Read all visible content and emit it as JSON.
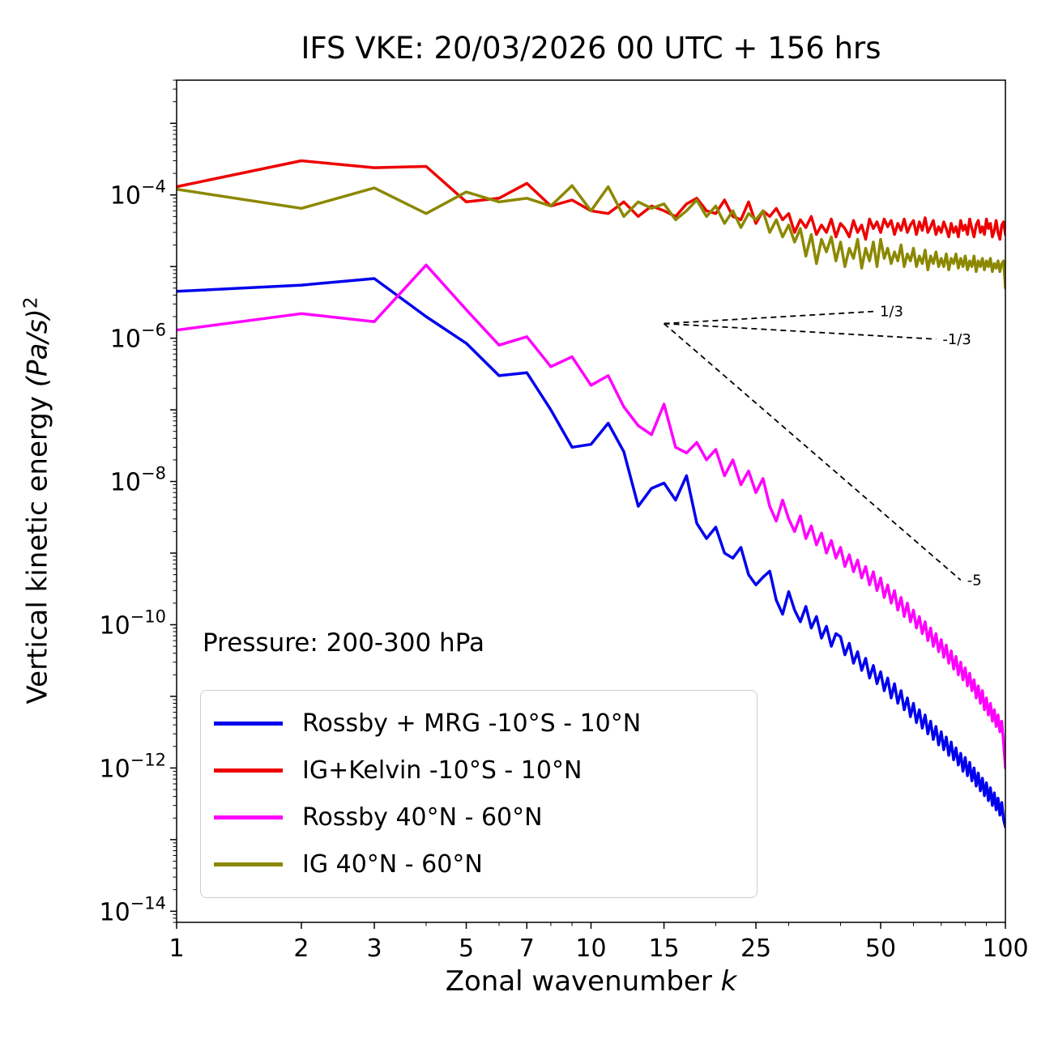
{
  "title": "IFS VKE: 20/03/2026 00 UTC + 156 hrs",
  "axes": {
    "x_label_prefix": "Zonal wavenumber ",
    "x_label_var": "k",
    "y_label_prefix": "Vertical kinetic energy ",
    "y_label_units": "(Pa/s)",
    "y_label_exp": "2",
    "x_ticks": [
      1,
      2,
      3,
      5,
      7,
      10,
      15,
      25,
      50,
      100
    ],
    "x_minor_ticks": [
      4,
      6,
      8,
      9,
      20,
      30,
      40,
      60,
      70,
      80,
      90
    ],
    "y_tick_exponents": [
      -4,
      -6,
      -8,
      -10,
      -12,
      -14
    ]
  },
  "annotation": {
    "pressure_text": "Pressure: 200-300 hPa"
  },
  "legend": {
    "position": "lower left",
    "entries": [
      {
        "label": "Rossby + MRG -10°S - 10°N",
        "color": "#0000ee"
      },
      {
        "label": "IG+Kelvin -10°S - 10°N",
        "color": "#ee0000"
      },
      {
        "label": "Rossby 40°N - 60°N",
        "color": "#ff00ff"
      },
      {
        "label": "IG 40°N - 60°N",
        "color": "#8b8800"
      }
    ]
  },
  "chart_data": {
    "type": "line",
    "title": "IFS VKE: 20/03/2026 00 UTC + 156 hrs",
    "xlabel": "Zonal wavenumber k",
    "ylabel": "Vertical kinetic energy (Pa/s)^2",
    "x_scale": "log",
    "y_scale": "log",
    "grid": false,
    "xlim": [
      1,
      100
    ],
    "ylim": [
      7e-15,
      0.004
    ],
    "x": [
      1,
      2,
      3,
      4,
      5,
      6,
      7,
      8,
      9,
      10,
      11,
      12,
      13,
      14,
      15,
      16,
      17,
      18,
      19,
      20,
      21,
      22,
      23,
      24,
      25,
      26,
      27,
      28,
      29,
      30,
      31,
      32,
      33,
      34,
      35,
      36,
      37,
      38,
      39,
      40,
      41,
      42,
      43,
      44,
      45,
      46,
      47,
      48,
      49,
      50,
      51,
      52,
      53,
      54,
      55,
      56,
      57,
      58,
      59,
      60,
      61,
      62,
      63,
      64,
      65,
      66,
      67,
      68,
      69,
      70,
      71,
      72,
      73,
      74,
      75,
      76,
      77,
      78,
      79,
      80,
      81,
      82,
      83,
      84,
      85,
      86,
      87,
      88,
      89,
      90,
      91,
      92,
      93,
      94,
      95,
      96,
      97,
      98,
      99,
      100
    ],
    "series": [
      {
        "id": "rossby-mrg-tropics-line",
        "name": "Rossby + MRG -10°S - 10°N",
        "color": "#0000ee",
        "values": [
          4.5e-06,
          5.5e-06,
          6.8e-06,
          2e-06,
          8.5e-07,
          3e-07,
          3.3e-07,
          1e-07,
          3e-08,
          3.3e-08,
          6.5e-08,
          2.6e-08,
          4.5e-09,
          8e-09,
          9.5e-09,
          5.5e-09,
          1.2e-08,
          2.6e-09,
          1.6e-09,
          2.3e-09,
          1e-09,
          8.5e-10,
          1.2e-09,
          5e-10,
          3.6e-10,
          4.6e-10,
          5.6e-10,
          2.2e-10,
          1.4e-10,
          2.9e-10,
          1.6e-10,
          1.1e-10,
          1.8e-10,
          9e-11,
          1.3e-10,
          6.5e-11,
          9.5e-11,
          5e-11,
          7.5e-11,
          6.8e-11,
          3.8e-11,
          5.5e-11,
          2.9e-11,
          4.2e-11,
          2.3e-11,
          3.4e-11,
          1.8e-11,
          2.7e-11,
          1.5e-11,
          2.2e-11,
          1.2e-11,
          1.8e-11,
          9.5e-12,
          1.5e-11,
          8e-12,
          1.2e-11,
          6.5e-12,
          9.5e-12,
          5.2e-12,
          8e-12,
          4.3e-12,
          6.5e-12,
          3.6e-12,
          5.5e-12,
          3e-12,
          4.5e-12,
          2.5e-12,
          3.8e-12,
          2.1e-12,
          3.2e-12,
          1.8e-12,
          2.7e-12,
          1.5e-12,
          2.3e-12,
          1.3e-12,
          1.9e-12,
          1.1e-12,
          1.6e-12,
          9e-13,
          1.4e-12,
          7.8e-13,
          1.2e-12,
          6.6e-13,
          1e-12,
          5.6e-13,
          8.5e-13,
          4.8e-13,
          7.2e-13,
          4.1e-13,
          6.2e-13,
          3.5e-13,
          5.3e-13,
          3e-13,
          4.5e-13,
          2.6e-13,
          3.8e-13,
          2.2e-13,
          3.3e-13,
          1.9e-13,
          1.5e-13
        ]
      },
      {
        "id": "ig-kelvin-tropics-line",
        "name": "IG+Kelvin -10°S - 10°N",
        "color": "#ee0000",
        "values": [
          0.00013,
          0.0003,
          0.00024,
          0.00025,
          8e-05,
          9e-05,
          0.000145,
          7e-05,
          8.5e-05,
          6e-05,
          5.5e-05,
          8e-05,
          5e-05,
          7e-05,
          6e-05,
          5e-05,
          7.5e-05,
          9e-05,
          6e-05,
          5.5e-05,
          8.5e-05,
          5e-05,
          4.5e-05,
          8e-05,
          4e-05,
          6e-05,
          5e-05,
          6.5e-05,
          4.5e-05,
          5.5e-05,
          3e-05,
          4.5e-05,
          3.5e-05,
          5e-05,
          2.8e-05,
          3.8e-05,
          3e-05,
          4.6e-05,
          2.6e-05,
          4e-05,
          3.4e-05,
          2.6e-05,
          4.4e-05,
          3e-05,
          3.8e-05,
          2.4e-05,
          4.6e-05,
          3.4e-05,
          4.2e-05,
          3e-05,
          4.6e-05,
          3.6e-05,
          4.4e-05,
          2.8e-05,
          4e-05,
          3.2e-05,
          4.6e-05,
          3e-05,
          3.8e-05,
          4.4e-05,
          2.8e-05,
          4.2e-05,
          3.2e-05,
          4.8e-05,
          3e-05,
          3.6e-05,
          4.4e-05,
          2.8e-05,
          3.6e-05,
          3e-05,
          4.2e-05,
          3.4e-05,
          2.6e-05,
          4e-05,
          3e-05,
          3.6e-05,
          2.6e-05,
          4.4e-05,
          3.2e-05,
          3.8e-05,
          2.8e-05,
          4.6e-05,
          3.4e-05,
          2.6e-05,
          3.8e-05,
          4.4e-05,
          3e-05,
          3.6e-05,
          2.8e-05,
          4.6e-05,
          3.4e-05,
          4e-05,
          2.6e-05,
          3.2e-05,
          4.4e-05,
          3e-05,
          2.4e-05,
          3.8e-05,
          4.2e-05,
          2.8e-05
        ]
      },
      {
        "id": "rossby-midlat-line",
        "name": "Rossby 40°N - 60°N",
        "color": "#ff00ff",
        "values": [
          1.3e-06,
          2.2e-06,
          1.7e-06,
          1.05e-05,
          2.5e-06,
          8e-07,
          1.05e-06,
          4e-07,
          5.5e-07,
          2.2e-07,
          3e-07,
          1.1e-07,
          6e-08,
          4.5e-08,
          1.2e-07,
          3e-08,
          2.5e-08,
          3.5e-08,
          2e-08,
          2.8e-08,
          1.2e-08,
          2e-08,
          9e-09,
          1.4e-08,
          7e-09,
          1.1e-08,
          4.5e-09,
          2.8e-09,
          5.5e-09,
          3e-09,
          2e-09,
          3.3e-09,
          1.6e-09,
          2.4e-09,
          1.3e-09,
          1.9e-09,
          1e-09,
          1.5e-09,
          8.5e-10,
          1.2e-09,
          6.5e-10,
          9.5e-10,
          5.5e-10,
          8e-10,
          4.5e-10,
          6.5e-10,
          3.6e-10,
          5.5e-10,
          3e-10,
          4.5e-10,
          2.4e-10,
          3.6e-10,
          2e-10,
          3e-10,
          1.6e-10,
          2.4e-10,
          1.3e-10,
          2e-10,
          1.1e-10,
          1.6e-10,
          9e-11,
          1.3e-10,
          7.5e-11,
          1.1e-10,
          6e-11,
          9e-11,
          5e-11,
          7.5e-11,
          4.2e-11,
          6.2e-11,
          3.5e-11,
          5.2e-11,
          2.9e-11,
          4.3e-11,
          2.4e-11,
          3.6e-11,
          2e-11,
          3e-11,
          1.7e-11,
          2.5e-11,
          1.4e-11,
          2.1e-11,
          1.2e-11,
          1.7e-11,
          9.5e-12,
          1.4e-11,
          8e-12,
          1.2e-11,
          6.5e-12,
          9.5e-12,
          5.5e-12,
          8e-12,
          4.5e-12,
          6.5e-12,
          3.8e-12,
          5.5e-12,
          3.2e-12,
          4.5e-12,
          2.2e-12,
          1e-12
        ]
      },
      {
        "id": "ig-midlat-line",
        "name": "IG 40°N - 60°N",
        "color": "#8b8800",
        "values": [
          0.00012,
          6.5e-05,
          0.000125,
          5.5e-05,
          0.00011,
          8e-05,
          9e-05,
          7e-05,
          0.000135,
          6e-05,
          0.00013,
          5e-05,
          8e-05,
          6.5e-05,
          7.5e-05,
          4.5e-05,
          6e-05,
          8.5e-05,
          5e-05,
          7e-05,
          4e-05,
          6e-05,
          3.5e-05,
          5.5e-05,
          4.5e-05,
          6e-05,
          3e-05,
          4.5e-05,
          2.6e-05,
          3.8e-05,
          2.2e-05,
          3.4e-05,
          1.4e-05,
          2.8e-05,
          1.1e-05,
          2.4e-05,
          1.6e-05,
          2.6e-05,
          1.2e-05,
          2.2e-05,
          1e-05,
          1.8e-05,
          1.3e-05,
          2.4e-05,
          9.5e-06,
          1.8e-05,
          1.2e-05,
          2.2e-05,
          1e-05,
          2.4e-05,
          1.3e-05,
          1.8e-05,
          1.1e-05,
          1.6e-05,
          1.2e-05,
          2e-05,
          1e-05,
          1.5e-05,
          1.2e-05,
          1.8e-05,
          1e-05,
          1.4e-05,
          1.1e-05,
          1.7e-05,
          9e-06,
          1.4e-05,
          1.1e-05,
          1.6e-05,
          1e-05,
          1.3e-05,
          1e-05,
          1.5e-05,
          9e-06,
          1.3e-05,
          1.1e-05,
          1.5e-05,
          9.5e-06,
          1.3e-05,
          1e-05,
          1.4e-05,
          9e-06,
          1.2e-05,
          1e-05,
          1.4e-05,
          8.5e-06,
          1.2e-05,
          1e-05,
          1.3e-05,
          9e-06,
          1.2e-05,
          1e-05,
          1.3e-05,
          8.5e-06,
          1.1e-05,
          9.5e-06,
          1.2e-05,
          8.5e-06,
          1.1e-05,
          1.2e-05,
          5e-06
        ]
      }
    ],
    "reference_lines": [
      {
        "id": "slope-one-third",
        "label": "1/3",
        "slope": 0.333,
        "x": [
          15,
          48
        ],
        "y": [
          1.6e-06,
          2.36e-06
        ]
      },
      {
        "id": "slope-minus-one-third",
        "label": "-1/3",
        "slope": -0.333,
        "x": [
          15,
          68
        ],
        "y": [
          1.6e-06,
          9.7e-07
        ]
      },
      {
        "id": "slope-minus-five",
        "label": "-5",
        "slope": -5,
        "x": [
          15,
          78
        ],
        "y": [
          1.6e-06,
          4.2e-10
        ]
      }
    ]
  }
}
